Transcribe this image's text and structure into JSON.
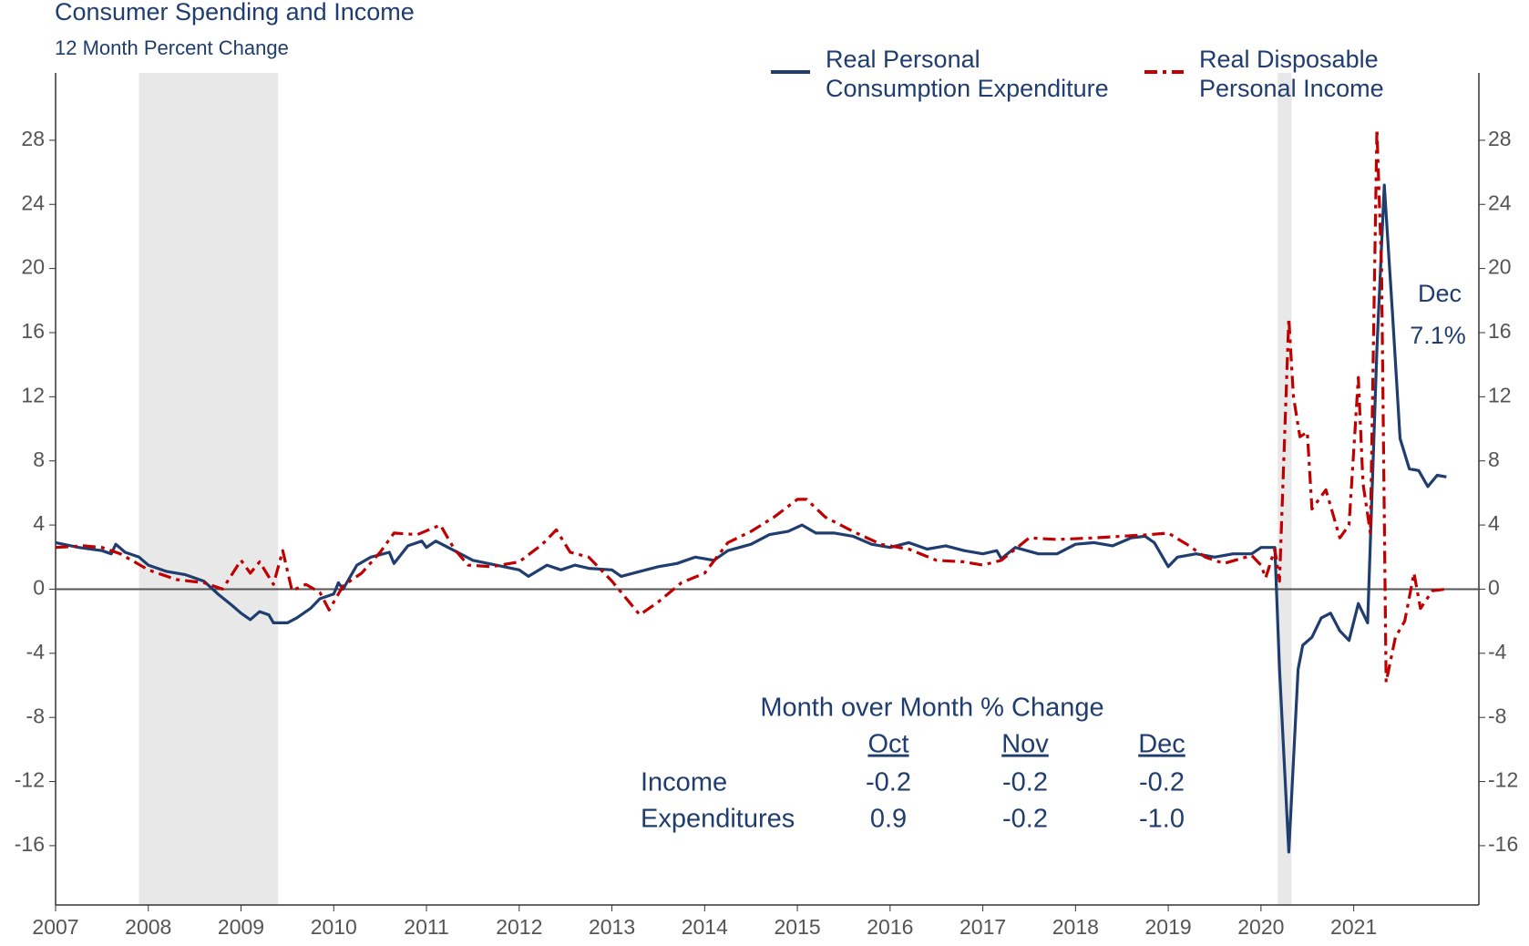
{
  "chart_data": {
    "type": "line",
    "title": "Consumer Spending and Income",
    "subtitle": "12 Month Percent Change",
    "xlim": [
      2007,
      2022.35
    ],
    "xticks": [
      2007,
      2008,
      2009,
      2010,
      2011,
      2012,
      2013,
      2014,
      2015,
      2016,
      2017,
      2018,
      2019,
      2020,
      2021
    ],
    "ylim": [
      -19.7,
      32.2
    ],
    "yticks": [
      -16,
      -12,
      -8,
      -4,
      0,
      4,
      8,
      12,
      16,
      20,
      24,
      28
    ],
    "y2lim": [
      -19.7,
      32.2
    ],
    "y2ticks": [
      -16,
      -12,
      -8,
      -4,
      0,
      4,
      8,
      12,
      16,
      20,
      24,
      28
    ],
    "recessions": [
      [
        2007.9,
        2009.4
      ],
      [
        2020.18,
        2020.33
      ]
    ],
    "series": [
      {
        "name": "Real Personal\nConsumption Expenditure",
        "color": "#1f3d6e",
        "x": [
          2007.0,
          2007.25,
          2007.5,
          2007.6,
          2007.65,
          2007.75,
          2007.9,
          2008.0,
          2008.2,
          2008.4,
          2008.6,
          2008.75,
          2008.9,
          2009.0,
          2009.1,
          2009.2,
          2009.3,
          2009.35,
          2009.5,
          2009.6,
          2009.75,
          2009.85,
          2010.0,
          2010.05,
          2010.1,
          2010.25,
          2010.4,
          2010.6,
          2010.65,
          2010.8,
          2010.95,
          2011.0,
          2011.1,
          2011.3,
          2011.5,
          2011.75,
          2012.0,
          2012.1,
          2012.3,
          2012.45,
          2012.6,
          2012.75,
          2013.0,
          2013.1,
          2013.3,
          2013.5,
          2013.7,
          2013.9,
          2014.1,
          2014.25,
          2014.5,
          2014.7,
          2014.9,
          2015.05,
          2015.2,
          2015.4,
          2015.6,
          2015.8,
          2016.0,
          2016.2,
          2016.4,
          2016.6,
          2016.8,
          2017.0,
          2017.15,
          2017.2,
          2017.35,
          2017.6,
          2017.8,
          2018.0,
          2018.2,
          2018.4,
          2018.6,
          2018.75,
          2018.85,
          2019.0,
          2019.1,
          2019.3,
          2019.5,
          2019.7,
          2019.9,
          2020.0,
          2020.15,
          2020.2,
          2020.3,
          2020.4,
          2020.45,
          2020.55,
          2020.65,
          2020.75,
          2020.85,
          2020.95,
          2021.05,
          2021.15,
          2021.25,
          2021.33,
          2021.42,
          2021.5,
          2021.6,
          2021.7,
          2021.8,
          2021.9,
          2022.0
        ],
        "values": [
          2.9,
          2.6,
          2.4,
          2.2,
          2.8,
          2.3,
          2.0,
          1.5,
          1.1,
          0.9,
          0.5,
          -0.3,
          -1.0,
          -1.5,
          -1.9,
          -1.4,
          -1.6,
          -2.1,
          -2.1,
          -1.8,
          -1.2,
          -0.6,
          -0.3,
          0.4,
          0.0,
          1.5,
          2.0,
          2.3,
          1.6,
          2.7,
          3.0,
          2.6,
          3.0,
          2.4,
          1.8,
          1.5,
          1.2,
          0.8,
          1.5,
          1.2,
          1.5,
          1.3,
          1.2,
          0.8,
          1.1,
          1.4,
          1.6,
          2.0,
          1.8,
          2.4,
          2.8,
          3.4,
          3.6,
          4.0,
          3.5,
          3.5,
          3.3,
          2.8,
          2.6,
          2.9,
          2.5,
          2.7,
          2.4,
          2.2,
          2.4,
          1.9,
          2.6,
          2.2,
          2.2,
          2.8,
          2.9,
          2.7,
          3.2,
          3.3,
          2.9,
          1.4,
          2.0,
          2.2,
          2.0,
          2.2,
          2.2,
          2.6,
          2.6,
          -5.0,
          -16.4,
          -5.0,
          -3.5,
          -3.0,
          -1.8,
          -1.5,
          -2.6,
          -3.2,
          -0.9,
          -2.1,
          15,
          25.2,
          17,
          9.4,
          7.5,
          7.4,
          6.4,
          7.1,
          7.0
        ]
      },
      {
        "name": "Real Disposable\nPersonal Income",
        "color": "#c00000",
        "axis": "y2",
        "x": [
          2007.0,
          2007.3,
          2007.5,
          2007.7,
          2008.0,
          2008.3,
          2008.6,
          2008.8,
          2009.0,
          2009.1,
          2009.2,
          2009.35,
          2009.45,
          2009.55,
          2009.7,
          2009.85,
          2009.95,
          2010.1,
          2010.3,
          2010.5,
          2010.65,
          2010.9,
          2011.15,
          2011.3,
          2011.45,
          2011.7,
          2012.0,
          2012.25,
          2012.4,
          2012.55,
          2012.75,
          2013.0,
          2013.3,
          2013.5,
          2013.75,
          2014.0,
          2014.25,
          2014.5,
          2014.75,
          2015.0,
          2015.1,
          2015.3,
          2015.6,
          2015.9,
          2016.2,
          2016.5,
          2016.8,
          2017.0,
          2017.2,
          2017.5,
          2017.8,
          2018.2,
          2018.5,
          2018.8,
          2019.0,
          2019.2,
          2019.4,
          2019.6,
          2019.9,
          2020.0,
          2020.05,
          2020.15,
          2020.2,
          2020.3,
          2020.35,
          2020.42,
          2020.5,
          2020.55,
          2020.7,
          2020.85,
          2020.95,
          2021.05,
          2021.1,
          2021.18,
          2021.25,
          2021.3,
          2021.35,
          2021.45,
          2021.55,
          2021.65,
          2021.72,
          2021.85,
          2022.0
        ],
        "values": [
          2.6,
          2.7,
          2.6,
          2.2,
          1.2,
          0.6,
          0.4,
          0.0,
          1.8,
          1.0,
          1.7,
          0.3,
          2.4,
          -0.1,
          0.3,
          -0.2,
          -1.3,
          0.2,
          1.0,
          2.3,
          3.5,
          3.4,
          4.0,
          2.5,
          1.5,
          1.4,
          1.7,
          2.8,
          3.7,
          2.3,
          2.0,
          0.5,
          -1.6,
          -0.8,
          0.4,
          1.0,
          2.9,
          3.6,
          4.5,
          5.6,
          5.6,
          4.5,
          3.6,
          2.8,
          2.5,
          1.8,
          1.7,
          1.5,
          1.8,
          3.2,
          3.1,
          3.2,
          3.3,
          3.4,
          3.5,
          2.8,
          2.0,
          1.6,
          2.1,
          1.5,
          0.7,
          2.5,
          0.5,
          16.9,
          12,
          9.5,
          9.8,
          5.0,
          6.2,
          3.2,
          4.0,
          13.2,
          6.6,
          3.5,
          28.7,
          20,
          -5.8,
          -3.0,
          -2.0,
          1.0,
          -1.2,
          -0.1,
          0.0
        ]
      }
    ],
    "annotation": [
      "Dec",
      "7.1%"
    ],
    "table": {
      "title": "Month over Month % Change",
      "columns": [
        "Oct",
        "Nov",
        "Dec"
      ],
      "rows": [
        {
          "label": "Income",
          "values": [
            "-0.2",
            "-0.2",
            "-0.2"
          ]
        },
        {
          "label": "Expenditures",
          "values": [
            "0.9",
            "-0.2",
            "-1.0"
          ]
        }
      ]
    }
  }
}
